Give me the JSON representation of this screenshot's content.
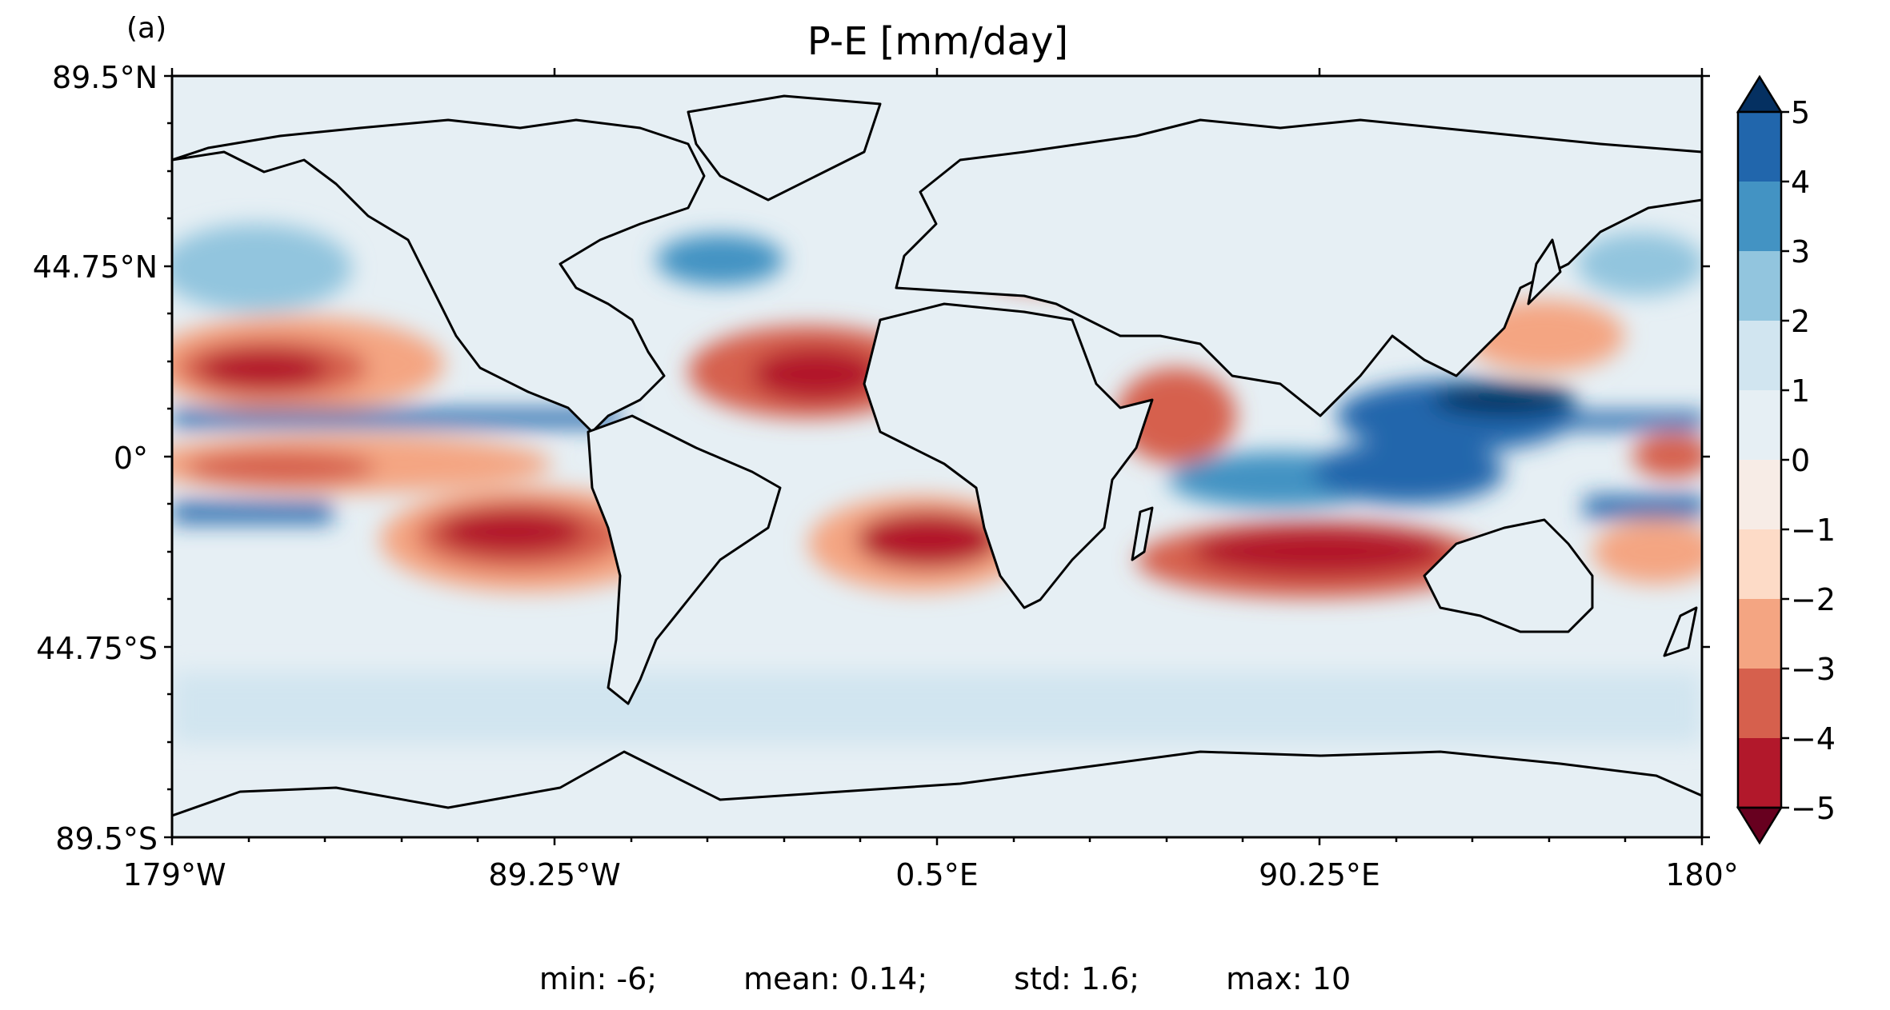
{
  "panel_label": "(a)",
  "title": "P-E [mm/day]",
  "lat_ticks": [
    "89.5°N",
    "44.75°N",
    "0°",
    "44.75°S",
    "89.5°S"
  ],
  "lon_ticks": [
    "179°W",
    "89.25°W",
    "0.5°E",
    "90.25°E",
    "180°"
  ],
  "colorbar": {
    "ticks": [
      "5",
      "4",
      "3",
      "2",
      "1",
      "0",
      "−1",
      "−2",
      "−3",
      "−4",
      "−5"
    ],
    "levels": [
      -5,
      -4,
      -3,
      -2,
      -1,
      0,
      1,
      2,
      3,
      4,
      5
    ],
    "extend": "both",
    "colors": [
      "#67001f",
      "#b2182b",
      "#d6604d",
      "#f4a582",
      "#fddbc7",
      "#f7ece6",
      "#e6eff4",
      "#d1e5f0",
      "#92c5de",
      "#4393c3",
      "#2166ac",
      "#053061"
    ]
  },
  "stats": {
    "min": "min: -6;",
    "mean": "mean: 0.14;",
    "std": "std: 1.6;",
    "max": "max: 10"
  },
  "map": {
    "projection": "PlateCarree",
    "lon_range": [
      -179,
      180
    ],
    "lat_range": [
      -89.5,
      89.5
    ],
    "field": "P-E",
    "coastlines": true
  }
}
